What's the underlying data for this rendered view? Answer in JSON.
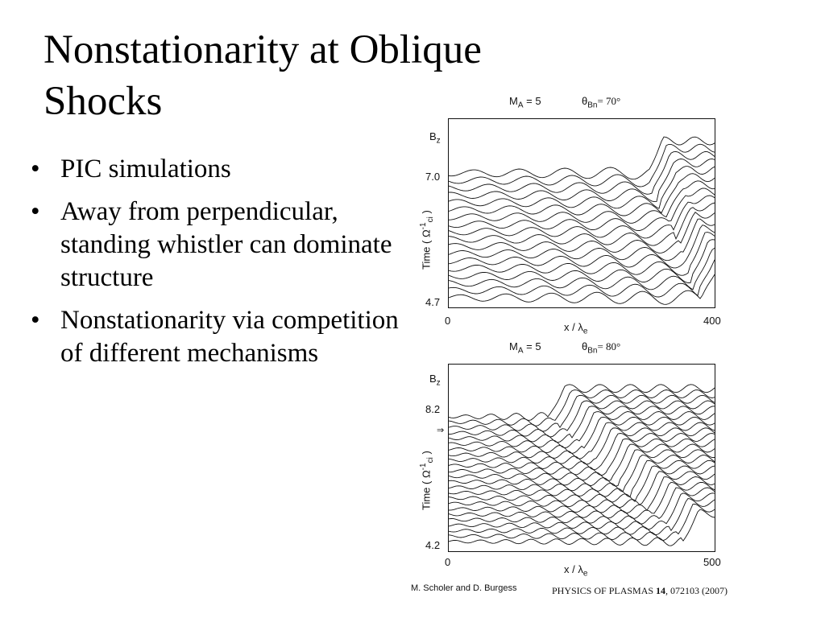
{
  "slide": {
    "title_line1": "Nonstationarity at Oblique",
    "title_line2": "Shocks",
    "bullets": [
      "PIC simulations",
      "Away from perpendicular, standing whistler can dominate structure",
      "Nonstationarity via competition of different mechanisms"
    ]
  },
  "figures": [
    {
      "header_ma": "M",
      "header_ma_sub": "A",
      "header_ma_val": " = 5",
      "header_theta": "θ",
      "header_theta_sub": "Bn",
      "header_theta_val": "= 70°",
      "b_label": "B",
      "b_label_sub": "z",
      "time_top": "7.0",
      "time_bottom": "4.7",
      "ylabel": "Time ( Ω",
      "ylabel_sup": "-1",
      "ylabel_sub": "ci",
      "ylabel_end": " )",
      "x_min": "0",
      "x_max": "400",
      "xlabel": "x / λ",
      "xlabel_sub": "e"
    },
    {
      "header_ma": "M",
      "header_ma_sub": "A",
      "header_ma_val": " = 5",
      "header_theta": "θ",
      "header_theta_sub": "Bn",
      "header_theta_val": "= 80°",
      "b_label": "B",
      "b_label_sub": "z",
      "time_top": "8.2",
      "time_bottom": "4.2",
      "marker": "⇒",
      "ylabel": "Time ( Ω",
      "ylabel_sup": "-1",
      "ylabel_sub": "ci",
      "ylabel_end": " )",
      "x_min": "0",
      "x_max": "500",
      "xlabel": "x / λ",
      "xlabel_sub": "e"
    }
  ],
  "credits": {
    "authors": "M. Scholer and D. Burgess",
    "journal": "PHYSICS OF PLASMAS ",
    "volume": "14",
    "ref": ", 072103 (2007)"
  }
}
